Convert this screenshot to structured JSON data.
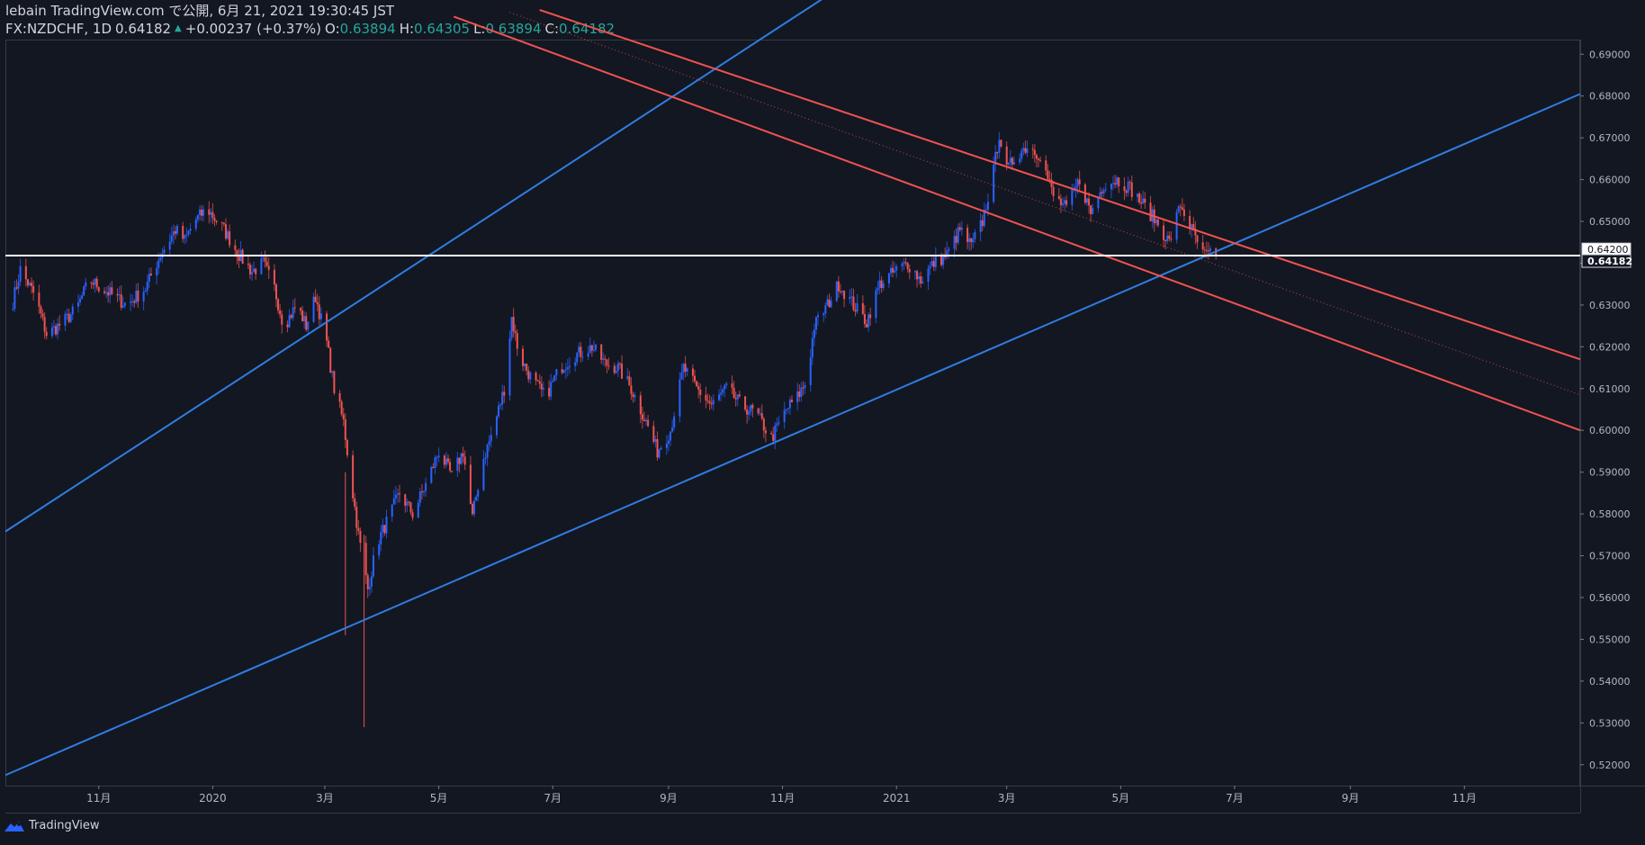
{
  "header": {
    "line1": "lebain TradingView.com で公開, 6月 21, 2021 19:30:45 JST",
    "symbol": "FX:NZDCHF, 1D",
    "last": "0.64182",
    "up_arrow": "▲",
    "change": "+0.00237 (+0.37%)",
    "o_label": "O:",
    "o_value": "0.63894",
    "h_label": "H:",
    "h_value": "0.64305",
    "l_label": "L:",
    "l_value": "0.63894",
    "c_label": "C:",
    "c_value": "0.64182"
  },
  "brand": {
    "name": "TradingView",
    "icon": "tradingview-logo-icon"
  },
  "colors": {
    "background": "#131722",
    "up": "#2962ff",
    "down": "#ef5350",
    "trend_blue": "#2f7de1",
    "trend_red": "#f05350",
    "price_line": "#ffffff",
    "axis_text": "#b2b5be"
  },
  "chart_data": {
    "type": "candlestick",
    "symbol": "FX:NZDCHF",
    "interval": "1D",
    "ylim": [
      0.515,
      0.6935
    ],
    "y_ticks": [
      "0.69000",
      "0.68000",
      "0.67000",
      "0.66000",
      "0.65000",
      "0.64000",
      "0.63000",
      "0.62000",
      "0.61000",
      "0.60000",
      "0.59000",
      "0.58000",
      "0.57000",
      "0.56000",
      "0.55000",
      "0.54000",
      "0.53000",
      "0.52000"
    ],
    "x_ticks": [
      {
        "label": "11月",
        "date": "2019-11-01"
      },
      {
        "label": "2020",
        "date": "2020-01-01"
      },
      {
        "label": "3月",
        "date": "2020-03-01"
      },
      {
        "label": "5月",
        "date": "2020-05-01"
      },
      {
        "label": "7月",
        "date": "2020-07-01"
      },
      {
        "label": "9月",
        "date": "2020-09-01"
      },
      {
        "label": "11月",
        "date": "2020-11-01"
      },
      {
        "label": "2021",
        "date": "2021-01-01"
      },
      {
        "label": "3月",
        "date": "2021-03-01"
      },
      {
        "label": "5月",
        "date": "2021-05-01"
      },
      {
        "label": "7月",
        "date": "2021-07-01"
      },
      {
        "label": "9月",
        "date": "2021-09-01"
      },
      {
        "label": "11月",
        "date": "2021-11-01"
      }
    ],
    "price_labels": [
      {
        "value": 0.642,
        "text": "0.64200",
        "style": "box-light"
      },
      {
        "value": 0.64182,
        "text": "0.64182",
        "style": "box-dark"
      }
    ],
    "horizontal_line": 0.64182,
    "close_path": [
      [
        "2019-09-14",
        0.627
      ],
      [
        "2019-09-20",
        0.6385
      ],
      [
        "2019-09-28",
        0.632
      ],
      [
        "2019-10-04",
        0.623
      ],
      [
        "2019-10-12",
        0.6255
      ],
      [
        "2019-10-20",
        0.629
      ],
      [
        "2019-10-27",
        0.636
      ],
      [
        "2019-11-06",
        0.633
      ],
      [
        "2019-11-16",
        0.63
      ],
      [
        "2019-11-26",
        0.634
      ],
      [
        "2019-12-04",
        0.642
      ],
      [
        "2019-12-12",
        0.648
      ],
      [
        "2019-12-17",
        0.6455
      ],
      [
        "2019-12-22",
        0.65
      ],
      [
        "2019-12-29",
        0.653
      ],
      [
        "2020-01-07",
        0.648
      ],
      [
        "2020-01-15",
        0.642
      ],
      [
        "2020-01-22",
        0.638
      ],
      [
        "2020-01-28",
        0.64
      ],
      [
        "2020-02-03",
        0.634
      ],
      [
        "2020-02-08",
        0.625
      ],
      [
        "2020-02-15",
        0.63
      ],
      [
        "2020-02-20",
        0.625
      ],
      [
        "2020-02-25",
        0.632
      ],
      [
        "2020-03-02",
        0.621
      ],
      [
        "2020-03-06",
        0.61
      ],
      [
        "2020-03-11",
        0.602
      ],
      [
        "2020-03-15",
        0.588
      ],
      [
        "2020-03-19",
        0.575
      ],
      [
        "2020-03-24",
        0.562
      ],
      [
        "2020-03-29",
        0.573
      ],
      [
        "2020-04-03",
        0.578
      ],
      [
        "2020-04-10",
        0.585
      ],
      [
        "2020-04-17",
        0.58
      ],
      [
        "2020-04-24",
        0.587
      ],
      [
        "2020-05-01",
        0.595
      ],
      [
        "2020-05-08",
        0.589
      ],
      [
        "2020-05-14",
        0.595
      ],
      [
        "2020-05-19",
        0.579
      ],
      [
        "2020-05-24",
        0.592
      ],
      [
        "2020-05-30",
        0.6
      ],
      [
        "2020-06-05",
        0.61
      ],
      [
        "2020-06-09",
        0.627
      ],
      [
        "2020-06-13",
        0.618
      ],
      [
        "2020-06-20",
        0.612
      ],
      [
        "2020-06-27",
        0.608
      ],
      [
        "2020-07-05",
        0.615
      ],
      [
        "2020-07-13",
        0.618
      ],
      [
        "2020-07-22",
        0.62
      ],
      [
        "2020-07-29",
        0.616
      ],
      [
        "2020-08-05",
        0.615
      ],
      [
        "2020-08-12",
        0.61
      ],
      [
        "2020-08-20",
        0.602
      ],
      [
        "2020-08-26",
        0.595
      ],
      [
        "2020-09-02",
        0.6
      ],
      [
        "2020-09-09",
        0.615
      ],
      [
        "2020-09-16",
        0.61
      ],
      [
        "2020-09-24",
        0.606
      ],
      [
        "2020-10-02",
        0.61
      ],
      [
        "2020-10-10",
        0.606
      ],
      [
        "2020-10-18",
        0.604
      ],
      [
        "2020-10-26",
        0.598
      ],
      [
        "2020-11-03",
        0.605
      ],
      [
        "2020-11-09",
        0.608
      ],
      [
        "2020-11-14",
        0.612
      ],
      [
        "2020-11-18",
        0.625
      ],
      [
        "2020-11-25",
        0.63
      ],
      [
        "2020-12-01",
        0.635
      ],
      [
        "2020-12-09",
        0.63
      ],
      [
        "2020-12-16",
        0.626
      ],
      [
        "2020-12-23",
        0.635
      ],
      [
        "2020-12-31",
        0.638
      ],
      [
        "2021-01-07",
        0.64
      ],
      [
        "2021-01-14",
        0.636
      ],
      [
        "2021-01-21",
        0.64
      ],
      [
        "2021-01-28",
        0.642
      ],
      [
        "2021-02-04",
        0.648
      ],
      [
        "2021-02-10",
        0.644
      ],
      [
        "2021-02-16",
        0.65
      ],
      [
        "2021-02-22",
        0.662
      ],
      [
        "2021-02-25",
        0.671
      ],
      [
        "2021-03-01",
        0.662
      ],
      [
        "2021-03-06",
        0.666
      ],
      [
        "2021-03-12",
        0.668
      ],
      [
        "2021-03-19",
        0.666
      ],
      [
        "2021-03-26",
        0.656
      ],
      [
        "2021-04-02",
        0.653
      ],
      [
        "2021-04-09",
        0.66
      ],
      [
        "2021-04-15",
        0.652
      ],
      [
        "2021-04-22",
        0.659
      ],
      [
        "2021-04-29",
        0.66
      ],
      [
        "2021-05-06",
        0.658
      ],
      [
        "2021-05-13",
        0.654
      ],
      [
        "2021-05-20",
        0.65
      ],
      [
        "2021-05-27",
        0.645
      ],
      [
        "2021-06-02",
        0.654
      ],
      [
        "2021-06-08",
        0.648
      ],
      [
        "2021-06-14",
        0.642
      ],
      [
        "2021-06-21",
        0.64182
      ]
    ],
    "trend_lines": [
      {
        "name": "blue channel upper",
        "color": "blue",
        "from": [
          "2019-09-12",
          0.5758
        ],
        "to": [
          "2020-12-31",
          0.7145
        ],
        "style": "solid"
      },
      {
        "name": "blue channel lower",
        "color": "blue",
        "from": [
          "2019-09-12",
          0.5175
        ],
        "to": [
          "2022-01-02",
          0.6805
        ],
        "style": "solid"
      },
      {
        "name": "red channel upper",
        "color": "red",
        "from": [
          "2020-06-24",
          0.7006
        ],
        "to": [
          "2022-01-02",
          0.617
        ],
        "style": "solid"
      },
      {
        "name": "red channel lower",
        "color": "red",
        "from": [
          "2020-05-09",
          0.699
        ],
        "to": [
          "2022-01-02",
          0.6
        ],
        "style": "solid"
      },
      {
        "name": "red channel median",
        "color": "red",
        "from": [
          "2020-06-08",
          0.7
        ],
        "to": [
          "2022-01-02",
          0.6085
        ],
        "style": "dotted"
      }
    ]
  }
}
